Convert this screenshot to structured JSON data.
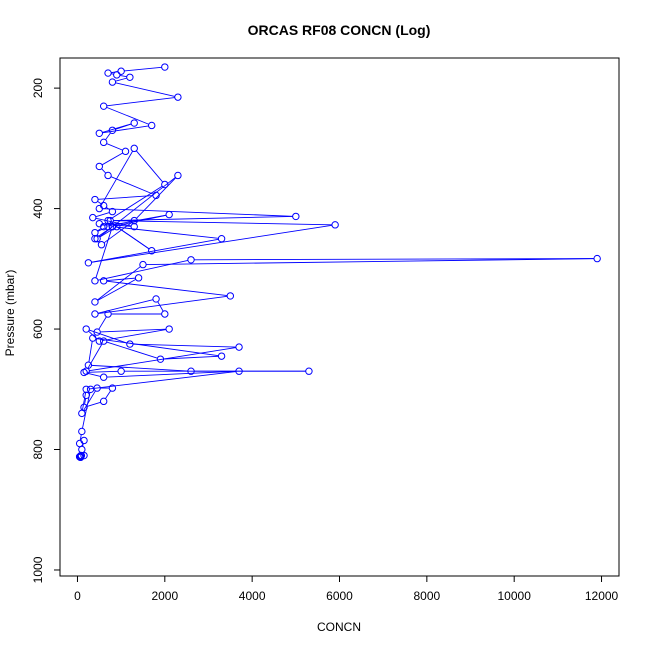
{
  "chart_data": {
    "type": "scatter",
    "title": "ORCAS RF08 CONCN (Log)",
    "xlabel": "CONCN",
    "ylabel": "Pressure (mbar)",
    "xlim": [
      -400,
      12400
    ],
    "ylim": [
      1010,
      150
    ],
    "y_inverted": true,
    "x_ticks": [
      0,
      2000,
      4000,
      6000,
      8000,
      10000,
      12000
    ],
    "y_ticks": [
      200,
      400,
      600,
      800,
      1000
    ],
    "grid": false,
    "legend": "none",
    "series_color": "#0000ff",
    "marker": "open-circle",
    "connected": true,
    "series": [
      {
        "x": [
          2000,
          1000,
          700,
          900,
          1200,
          800,
          2300,
          600,
          1700,
          500,
          1300,
          800,
          600,
          1100,
          500,
          700,
          1800,
          400,
          600,
          800,
          350,
          1300,
          500,
          700,
          400,
          600,
          2100,
          800,
          400,
          550,
          1300,
          2300,
          450,
          900,
          1700,
          700,
          2000,
          1300,
          500,
          5000,
          750,
          5900,
          250,
          3300,
          800,
          400,
          2600,
          11900,
          1500,
          400,
          1400,
          600,
          3500,
          400,
          1800,
          2000,
          700,
          450,
          2100,
          500,
          200,
          1200,
          3700,
          200,
          600,
          1900,
          3300,
          350,
          250,
          2600,
          5300,
          1000,
          150,
          600,
          3700,
          200,
          100,
          450,
          800,
          600,
          150,
          200,
          300,
          100,
          50,
          150,
          100,
          150,
          50,
          80,
          70,
          90,
          60,
          80,
          50
        ],
        "y": [
          165,
          172,
          175,
          178,
          182,
          190,
          215,
          230,
          262,
          275,
          258,
          270,
          290,
          305,
          330,
          345,
          378,
          385,
          395,
          405,
          415,
          430,
          425,
          430,
          440,
          430,
          410,
          430,
          450,
          460,
          420,
          345,
          450,
          430,
          470,
          420,
          360,
          300,
          400,
          413,
          420,
          427,
          490,
          450,
          430,
          520,
          485,
          483,
          493,
          555,
          515,
          520,
          545,
          575,
          550,
          575,
          575,
          605,
          600,
          620,
          600,
          625,
          630,
          670,
          620,
          650,
          645,
          615,
          660,
          670,
          670,
          670,
          672,
          680,
          670,
          700,
          740,
          698,
          698,
          720,
          730,
          710,
          700,
          770,
          790,
          785,
          800,
          810,
          812,
          810,
          813,
          810,
          812,
          811,
          812
        ]
      }
    ]
  }
}
